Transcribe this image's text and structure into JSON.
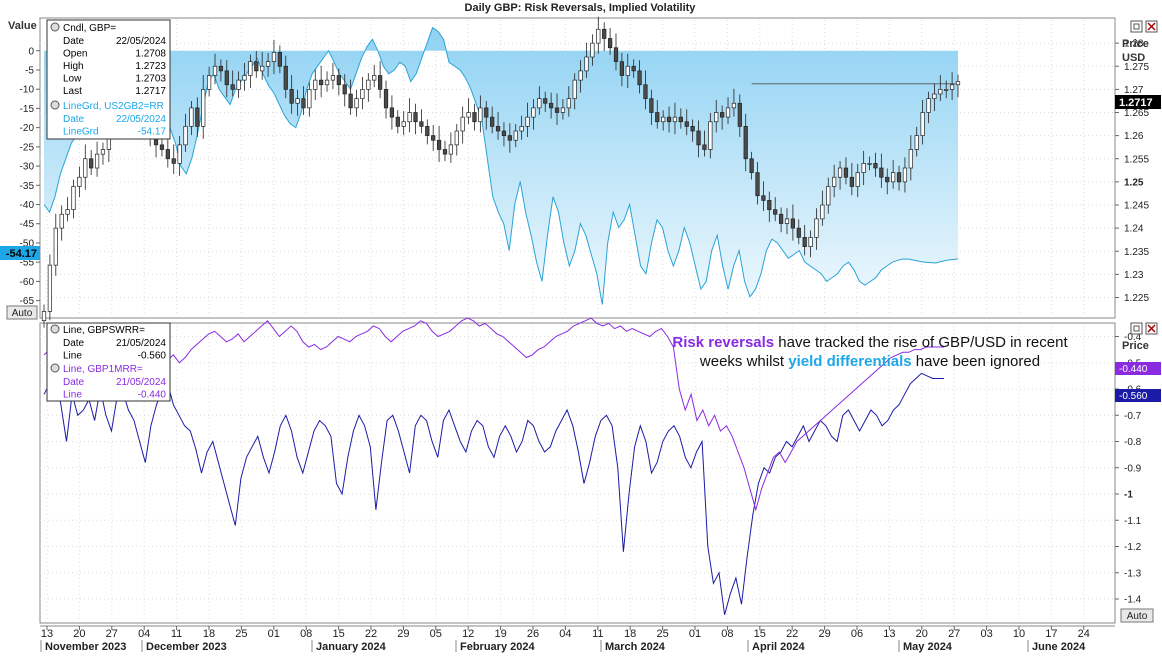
{
  "title": "Daily GBP: Risk Reversals, Implied Volatility",
  "colors": {
    "rr": "#2aa3d6",
    "rr_fill_top": "#8fd2f3",
    "rr_fill_bottom": "#eef8fd",
    "candle_up": "#ffffff",
    "candle_down": "#4a4a4a",
    "gbpswrr": "#1b1ba6",
    "gbp1mrr": "#8a2be2",
    "annot_purple": "#8a2be2",
    "annot_blue": "#1ea7e8",
    "grid": "#dddddd"
  },
  "top_panel": {
    "left_axis_title": "Value",
    "left_ticks": [
      "0",
      "-5",
      "-10",
      "-15",
      "-20",
      "-25",
      "-30",
      "-35",
      "-40",
      "-45",
      "-50",
      "-55",
      "-60",
      "-65"
    ],
    "left_current": "-54.17",
    "right_title_1": "Price",
    "right_title_2": "USD",
    "right_ticks": [
      "1.28",
      "1.275",
      "1.27",
      "1.265",
      "1.26",
      "1.255",
      "1.25",
      "1.245",
      "1.24",
      "1.235",
      "1.23",
      "1.225"
    ],
    "right_current": "1.2717",
    "auto_label": "Auto",
    "legend": {
      "row1": "Cndl, GBP=",
      "rows": [
        [
          "Date",
          "22/05/2024"
        ],
        [
          "Open",
          "1.2708"
        ],
        [
          "High",
          "1.2723"
        ],
        [
          "Low",
          "1.2703"
        ],
        [
          "Last",
          "1.2717"
        ]
      ],
      "row_rr": "LineGrd, US2GB2=RR",
      "rows_rr": [
        [
          "Date",
          "22/05/2024"
        ],
        [
          "LineGrd",
          "-54.17"
        ]
      ]
    }
  },
  "bottom_panel": {
    "right_title": "Price",
    "right_ticks": [
      "-0.4",
      "-0.5",
      "-0.6",
      "-0.7",
      "-0.8",
      "-0.9",
      "-1",
      "-1.1",
      "-1.2",
      "-1.3",
      "-1.4"
    ],
    "right_current_1": "-0.440",
    "right_current_2": "-0.560",
    "auto_label": "Auto",
    "legend": {
      "row1": "Line, GBPSWRR=",
      "rows1": [
        [
          "Date",
          "21/05/2024"
        ],
        [
          "Line",
          "-0.560"
        ]
      ],
      "row2": "Line, GBP1MRR=",
      "rows2": [
        [
          "Date",
          "21/05/2024"
        ],
        [
          "Line",
          "-0.440"
        ]
      ]
    },
    "annotation": {
      "p1": "Risk reversals",
      "p2": " have tracked the rise of GBP/USD in recent",
      "p3": "weeks whilst ",
      "p4": "yield differentials",
      "p5": " have been ignored"
    }
  },
  "x_axis": {
    "days": [
      "13",
      "20",
      "27",
      "04",
      "11",
      "18",
      "25",
      "01",
      "08",
      "15",
      "22",
      "29",
      "05",
      "12",
      "19",
      "26",
      "04",
      "11",
      "18",
      "25",
      "01",
      "08",
      "15",
      "22",
      "29",
      "06",
      "13",
      "20",
      "27",
      "03",
      "10",
      "17",
      "24"
    ],
    "months": [
      "November 2023",
      "December 2023",
      "January 2024",
      "February 2024",
      "March 2024",
      "April 2024",
      "May 2024",
      "June 2024"
    ]
  },
  "chart_data": [
    {
      "type": "candlestick",
      "title": "Daily GBP: Risk Reversals, Implied Volatility",
      "series_name": "GBP=",
      "y_axis": "USD",
      "ylim": [
        1.221,
        1.285
      ],
      "start_date": "2023-11-13",
      "close": [
        1.222,
        1.232,
        1.24,
        1.243,
        1.244,
        1.249,
        1.251,
        1.255,
        1.253,
        1.256,
        1.257,
        1.262,
        1.263,
        1.264,
        1.263,
        1.262,
        1.264,
        1.262,
        1.26,
        1.258,
        1.257,
        1.255,
        1.254,
        1.258,
        1.262,
        1.266,
        1.262,
        1.27,
        1.273,
        1.275,
        1.274,
        1.271,
        1.27,
        1.272,
        1.273,
        1.276,
        1.274,
        1.275,
        1.276,
        1.278,
        1.275,
        1.27,
        1.267,
        1.268,
        1.266,
        1.27,
        1.272,
        1.271,
        1.272,
        1.273,
        1.271,
        1.269,
        1.266,
        1.268,
        1.27,
        1.272,
        1.273,
        1.27,
        1.266,
        1.264,
        1.262,
        1.263,
        1.265,
        1.263,
        1.262,
        1.26,
        1.259,
        1.257,
        1.256,
        1.258,
        1.261,
        1.264,
        1.265,
        1.263,
        1.266,
        1.264,
        1.262,
        1.261,
        1.26,
        1.259,
        1.261,
        1.262,
        1.264,
        1.266,
        1.268,
        1.267,
        1.266,
        1.265,
        1.266,
        1.268,
        1.272,
        1.274,
        1.277,
        1.28,
        1.283,
        1.281,
        1.279,
        1.276,
        1.273,
        1.275,
        1.274,
        1.271,
        1.268,
        1.265,
        1.263,
        1.264,
        1.263,
        1.264,
        1.263,
        1.262,
        1.261,
        1.258,
        1.257,
        1.263,
        1.265,
        1.264,
        1.266,
        1.267,
        1.262,
        1.255,
        1.252,
        1.247,
        1.246,
        1.244,
        1.243,
        1.241,
        1.242,
        1.24,
        1.238,
        1.236,
        1.238,
        1.242,
        1.245,
        1.249,
        1.251,
        1.253,
        1.251,
        1.249,
        1.252,
        1.254,
        1.254,
        1.253,
        1.251,
        1.25,
        1.252,
        1.25,
        1.253,
        1.257,
        1.26,
        1.265,
        1.268,
        1.269,
        1.27,
        1.27,
        1.271,
        1.2717
      ]
    },
    {
      "type": "area",
      "series_name": "US2GB2=RR",
      "y_axis": "Value",
      "ylim": [
        -69,
        8
      ],
      "values": [
        -40,
        -42,
        -38,
        -32,
        -28,
        -24,
        -22,
        -20,
        -14,
        -10,
        -8,
        -13,
        -12,
        -10,
        -8,
        -6,
        -9,
        -14,
        -18,
        -10,
        -8,
        -12,
        -15,
        -20,
        -24,
        -30,
        -32,
        -28,
        -22,
        -15,
        -8,
        -6,
        -10,
        -12,
        -14,
        -10,
        -8,
        -6,
        -4,
        -2,
        -6,
        -9,
        -11,
        -14,
        -17,
        -19,
        -20,
        -16,
        -10,
        -6,
        -4,
        -2,
        0,
        -3,
        -6,
        -8,
        -10,
        -6,
        -2,
        1,
        3,
        0,
        -4,
        -6,
        -5,
        -3,
        -4,
        -8,
        -6,
        -2,
        2,
        6,
        5,
        3,
        -3,
        -4,
        -5,
        -7,
        -10,
        -14,
        -18,
        -28,
        -38,
        -42,
        -45,
        -52,
        -40,
        -34,
        -42,
        -48,
        -55,
        -60,
        -48,
        -38,
        -42,
        -50,
        -56,
        -52,
        -45,
        -48,
        -53,
        -58,
        -66,
        -50,
        -42,
        -46,
        -44,
        -40,
        -48,
        -56,
        -58,
        -50,
        -44,
        -46,
        -52,
        -56,
        -52,
        -46,
        -50,
        -56,
        -62,
        -60,
        -52,
        -48,
        -56,
        -62,
        -56,
        -52,
        -60,
        -64,
        -62,
        -58,
        -52,
        -49,
        -50,
        -52,
        -54,
        -53,
        -52,
        -55,
        -56,
        -57,
        -58,
        -60,
        -59,
        -58,
        -56,
        -55,
        -57,
        -60,
        -61,
        -60,
        -59,
        -57,
        -56,
        -55,
        -54.5,
        -54.17,
        -54.2,
        -54.5,
        -54.8,
        -55.0,
        -55.1,
        -55.2,
        -54.8,
        -54.5,
        -54.3,
        -54.17
      ]
    },
    {
      "type": "line",
      "series": [
        {
          "name": "GBPSWRR=",
          "values": [
            -0.62,
            -0.58,
            -0.56,
            -0.66,
            -0.8,
            -0.62,
            -0.7,
            -0.68,
            -0.64,
            -0.72,
            -0.6,
            -0.7,
            -0.76,
            -0.63,
            -0.61,
            -0.68,
            -0.72,
            -0.8,
            -0.88,
            -0.74,
            -0.66,
            -0.6,
            -0.58,
            -0.66,
            -0.7,
            -0.74,
            -0.76,
            -0.83,
            -0.92,
            -0.84,
            -0.8,
            -0.88,
            -0.96,
            -1.04,
            -1.12,
            -0.94,
            -0.86,
            -0.82,
            -0.78,
            -0.86,
            -0.92,
            -0.84,
            -0.74,
            -0.7,
            -0.76,
            -0.86,
            -0.92,
            -0.84,
            -0.76,
            -0.72,
            -0.74,
            -0.78,
            -0.96,
            -1.0,
            -0.86,
            -0.76,
            -0.7,
            -0.74,
            -0.82,
            -1.06,
            -0.88,
            -0.72,
            -0.7,
            -0.76,
            -0.84,
            -0.92,
            -0.74,
            -0.7,
            -0.72,
            -0.8,
            -0.86,
            -0.72,
            -0.68,
            -0.74,
            -0.8,
            -0.84,
            -0.76,
            -0.72,
            -0.74,
            -0.82,
            -0.86,
            -0.78,
            -0.74,
            -0.78,
            -0.84,
            -0.8,
            -0.72,
            -0.74,
            -0.8,
            -0.84,
            -0.82,
            -0.76,
            -0.72,
            -0.68,
            -0.74,
            -0.84,
            -0.96,
            -0.88,
            -0.78,
            -0.72,
            -0.7,
            -0.74,
            -0.9,
            -1.22,
            -1.0,
            -0.82,
            -0.74,
            -0.8,
            -0.92,
            -0.88,
            -0.8,
            -0.76,
            -0.74,
            -0.78,
            -0.86,
            -0.9,
            -0.84,
            -0.8,
            -1.2,
            -1.34,
            -1.3,
            -1.46,
            -1.38,
            -1.32,
            -1.42,
            -1.24,
            -1.08,
            -0.96,
            -0.9,
            -0.92,
            -0.86,
            -0.84,
            -0.8,
            -0.82,
            -0.78,
            -0.74,
            -0.8,
            -0.76,
            -0.72,
            -0.74,
            -0.78,
            -0.8,
            -0.7,
            -0.68,
            -0.72,
            -0.76,
            -0.72,
            -0.68,
            -0.7,
            -0.74,
            -0.72,
            -0.68,
            -0.66,
            -0.62,
            -0.58,
            -0.56,
            -0.54,
            -0.55,
            -0.56,
            -0.56,
            -0.56
          ]
        },
        {
          "name": "GBP1MRR=",
          "values": [
            -0.47,
            -0.45,
            -0.5,
            -0.52,
            -0.48,
            -0.47,
            -0.52,
            -0.49,
            -0.53,
            -0.55,
            -0.48,
            -0.52,
            -0.56,
            -0.5,
            -0.47,
            -0.52,
            -0.55,
            -0.52,
            -0.57,
            -0.55,
            -0.51,
            -0.49,
            -0.47,
            -0.5,
            -0.48,
            -0.45,
            -0.43,
            -0.41,
            -0.39,
            -0.38,
            -0.4,
            -0.42,
            -0.41,
            -0.39,
            -0.42,
            -0.4,
            -0.38,
            -0.36,
            -0.34,
            -0.37,
            -0.4,
            -0.38,
            -0.36,
            -0.38,
            -0.42,
            -0.44,
            -0.43,
            -0.45,
            -0.44,
            -0.42,
            -0.4,
            -0.41,
            -0.42,
            -0.4,
            -0.39,
            -0.38,
            -0.36,
            -0.37,
            -0.4,
            -0.42,
            -0.4,
            -0.38,
            -0.37,
            -0.36,
            -0.34,
            -0.35,
            -0.38,
            -0.4,
            -0.39,
            -0.38,
            -0.36,
            -0.34,
            -0.33,
            -0.34,
            -0.36,
            -0.35,
            -0.37,
            -0.39,
            -0.4,
            -0.42,
            -0.44,
            -0.46,
            -0.48,
            -0.47,
            -0.45,
            -0.44,
            -0.42,
            -0.4,
            -0.39,
            -0.38,
            -0.36,
            -0.35,
            -0.34,
            -0.33,
            -0.35,
            -0.36,
            -0.35,
            -0.37,
            -0.36,
            -0.38,
            -0.37,
            -0.38,
            -0.39,
            -0.4,
            -0.38,
            -0.37,
            -0.4,
            -0.44,
            -0.6,
            -0.68,
            -0.62,
            -0.72,
            -0.68,
            -0.74,
            -0.7,
            -0.76,
            -0.74,
            -0.78,
            -0.84,
            -0.9,
            -0.98,
            -1.06,
            -0.98,
            -0.92,
            -0.86,
            -0.84,
            -0.88,
            -0.84,
            -0.8,
            -0.78,
            -0.76,
            -0.74,
            -0.72,
            -0.7,
            -0.68,
            -0.66,
            -0.64,
            -0.62,
            -0.6,
            -0.58,
            -0.56,
            -0.54,
            -0.52,
            -0.5,
            -0.48,
            -0.47,
            -0.46,
            -0.46,
            -0.45,
            -0.45,
            -0.44,
            -0.44,
            -0.44,
            -0.44
          ]
        }
      ],
      "y_axis": "Price",
      "ylim": [
        -1.48,
        -0.36
      ]
    }
  ]
}
